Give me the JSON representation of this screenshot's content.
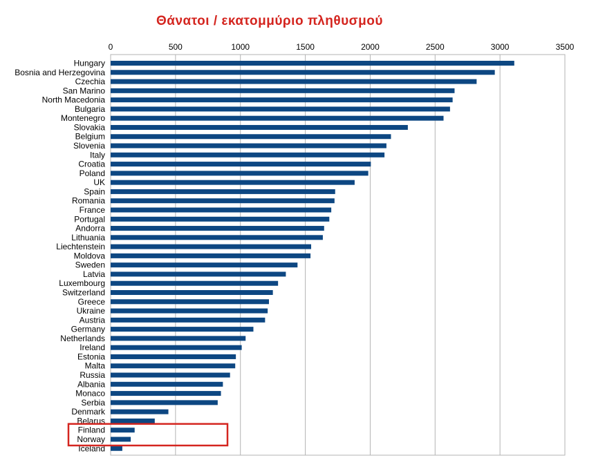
{
  "chart_data": {
    "type": "bar",
    "orientation": "horizontal",
    "title": "Θάνατοι / εκατομμύριο πληθυσμού",
    "title_color": "#d4251f",
    "bar_color": "#0d4782",
    "highlight_color": "#d4251f",
    "xlim": [
      0,
      3500
    ],
    "xticks": [
      "0",
      "500",
      "1000",
      "1500",
      "2000",
      "2500",
      "3000",
      "3500"
    ],
    "xaxis_position": "top",
    "grid": true,
    "legend": "none",
    "highlighted": [
      "Finland",
      "Norway"
    ],
    "categories": [
      "Hungary",
      "Bosnia and Herzegovina",
      "Czechia",
      "San Marino",
      "North Macedonia",
      "Bulgaria",
      "Montenegro",
      "Slovakia",
      "Belgium",
      "Slovenia",
      "Italy",
      "Croatia",
      "Poland",
      "UK",
      "Spain",
      "Romania",
      "France",
      "Portugal",
      "Andorra",
      "Lithuania",
      "Liechtenstein",
      "Moldova",
      "Sweden",
      "Latvia",
      "Luxembourg",
      "Switzerland",
      "Greece",
      "Ukraine",
      "Austria",
      "Germany",
      "Netherlands",
      "Ireland",
      "Estonia",
      "Malta",
      "Russia",
      "Albania",
      "Monaco",
      "Serbia",
      "Denmark",
      "Belarus",
      "Finland",
      "Norway",
      "Iceland"
    ],
    "values": [
      3110,
      2960,
      2820,
      2650,
      2635,
      2615,
      2565,
      2290,
      2160,
      2125,
      2110,
      2005,
      1985,
      1880,
      1730,
      1725,
      1700,
      1685,
      1645,
      1635,
      1545,
      1540,
      1440,
      1350,
      1290,
      1250,
      1220,
      1210,
      1190,
      1100,
      1040,
      1010,
      965,
      960,
      920,
      865,
      850,
      825,
      445,
      340,
      185,
      155,
      90
    ]
  }
}
